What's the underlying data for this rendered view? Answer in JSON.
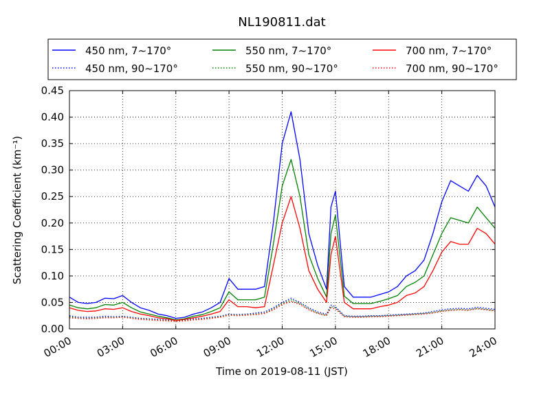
{
  "chart_data": {
    "type": "line",
    "title": "NL190811.dat",
    "xlabel": "Time on 2019-08-11 (JST)",
    "ylabel": "Scattering Coefficient (km⁻¹)",
    "xlim": [
      "00:00",
      "24:00"
    ],
    "ylim": [
      0,
      0.45
    ],
    "grid": true,
    "legend_position": "top",
    "x_ticks": [
      "00:00",
      "03:00",
      "06:00",
      "09:00",
      "12:00",
      "15:00",
      "18:00",
      "21:00",
      "24:00"
    ],
    "y_ticks": [
      "0.00",
      "0.05",
      "0.10",
      "0.15",
      "0.20",
      "0.25",
      "0.30",
      "0.35",
      "0.40",
      "0.45"
    ],
    "x": [
      "00:00",
      "00:30",
      "01:00",
      "01:30",
      "02:00",
      "02:30",
      "03:00",
      "03:30",
      "04:00",
      "04:30",
      "05:00",
      "05:30",
      "06:00",
      "06:30",
      "07:00",
      "07:30",
      "08:00",
      "08:30",
      "09:00",
      "09:30",
      "10:00",
      "10:30",
      "11:00",
      "11:30",
      "12:00",
      "12:30",
      "13:00",
      "13:30",
      "14:00",
      "14:30",
      "14:45",
      "15:00",
      "15:30",
      "16:00",
      "16:30",
      "17:00",
      "17:30",
      "18:00",
      "18:30",
      "19:00",
      "19:30",
      "20:00",
      "20:30",
      "21:00",
      "21:30",
      "22:00",
      "22:30",
      "23:00",
      "23:30",
      "24:00"
    ],
    "series": [
      {
        "name": "450 nm, 7∼170°",
        "color": "#0000ff",
        "style": "solid",
        "values": [
          0.06,
          0.05,
          0.048,
          0.05,
          0.058,
          0.057,
          0.063,
          0.05,
          0.04,
          0.035,
          0.028,
          0.025,
          0.02,
          0.022,
          0.028,
          0.032,
          0.04,
          0.05,
          0.095,
          0.075,
          0.075,
          0.075,
          0.08,
          0.2,
          0.35,
          0.41,
          0.32,
          0.18,
          0.12,
          0.075,
          0.23,
          0.26,
          0.08,
          0.06,
          0.06,
          0.06,
          0.065,
          0.07,
          0.08,
          0.1,
          0.11,
          0.13,
          0.18,
          0.24,
          0.28,
          0.27,
          0.26,
          0.29,
          0.27,
          0.23
        ]
      },
      {
        "name": "450 nm, 90∼170°",
        "color": "#0000ff",
        "style": "dotted",
        "values": [
          0.025,
          0.022,
          0.022,
          0.022,
          0.024,
          0.023,
          0.024,
          0.022,
          0.02,
          0.019,
          0.018,
          0.017,
          0.016,
          0.017,
          0.019,
          0.02,
          0.022,
          0.024,
          0.028,
          0.027,
          0.028,
          0.03,
          0.032,
          0.04,
          0.05,
          0.058,
          0.05,
          0.04,
          0.032,
          0.028,
          0.045,
          0.042,
          0.025,
          0.024,
          0.024,
          0.025,
          0.025,
          0.026,
          0.027,
          0.028,
          0.029,
          0.03,
          0.033,
          0.036,
          0.038,
          0.039,
          0.038,
          0.041,
          0.039,
          0.037
        ]
      },
      {
        "name": "550 nm, 7∼170°",
        "color": "#008000",
        "style": "solid",
        "values": [
          0.045,
          0.04,
          0.038,
          0.04,
          0.046,
          0.045,
          0.05,
          0.04,
          0.032,
          0.028,
          0.024,
          0.021,
          0.017,
          0.019,
          0.024,
          0.027,
          0.033,
          0.04,
          0.07,
          0.055,
          0.055,
          0.055,
          0.06,
          0.16,
          0.27,
          0.32,
          0.25,
          0.14,
          0.095,
          0.06,
          0.18,
          0.215,
          0.062,
          0.048,
          0.048,
          0.048,
          0.052,
          0.057,
          0.063,
          0.08,
          0.088,
          0.1,
          0.14,
          0.18,
          0.21,
          0.205,
          0.2,
          0.23,
          0.21,
          0.19
        ]
      },
      {
        "name": "550 nm, 90∼170°",
        "color": "#008000",
        "style": "dotted",
        "values": [
          0.023,
          0.021,
          0.02,
          0.021,
          0.022,
          0.022,
          0.023,
          0.021,
          0.019,
          0.018,
          0.017,
          0.016,
          0.015,
          0.016,
          0.018,
          0.019,
          0.021,
          0.023,
          0.027,
          0.026,
          0.027,
          0.028,
          0.03,
          0.038,
          0.048,
          0.055,
          0.048,
          0.038,
          0.03,
          0.026,
          0.042,
          0.04,
          0.024,
          0.023,
          0.023,
          0.024,
          0.024,
          0.025,
          0.026,
          0.027,
          0.028,
          0.029,
          0.031,
          0.034,
          0.036,
          0.037,
          0.036,
          0.039,
          0.037,
          0.035
        ]
      },
      {
        "name": "700 nm, 7∼170°",
        "color": "#ff0000",
        "style": "solid",
        "values": [
          0.04,
          0.035,
          0.033,
          0.034,
          0.038,
          0.037,
          0.04,
          0.033,
          0.028,
          0.025,
          0.021,
          0.019,
          0.016,
          0.018,
          0.021,
          0.024,
          0.028,
          0.033,
          0.055,
          0.042,
          0.042,
          0.04,
          0.042,
          0.12,
          0.2,
          0.25,
          0.19,
          0.11,
          0.075,
          0.05,
          0.14,
          0.175,
          0.05,
          0.038,
          0.038,
          0.038,
          0.042,
          0.045,
          0.05,
          0.063,
          0.068,
          0.08,
          0.11,
          0.145,
          0.165,
          0.16,
          0.16,
          0.19,
          0.18,
          0.16
        ]
      },
      {
        "name": "700 nm, 90∼170°",
        "color": "#ff0000",
        "style": "dotted",
        "values": [
          0.021,
          0.02,
          0.019,
          0.02,
          0.021,
          0.021,
          0.022,
          0.02,
          0.018,
          0.017,
          0.016,
          0.015,
          0.014,
          0.015,
          0.017,
          0.018,
          0.02,
          0.022,
          0.026,
          0.025,
          0.026,
          0.027,
          0.029,
          0.036,
          0.046,
          0.052,
          0.046,
          0.036,
          0.029,
          0.025,
          0.04,
          0.038,
          0.023,
          0.022,
          0.022,
          0.023,
          0.023,
          0.024,
          0.025,
          0.026,
          0.027,
          0.028,
          0.03,
          0.033,
          0.035,
          0.036,
          0.035,
          0.038,
          0.036,
          0.034
        ]
      }
    ]
  }
}
